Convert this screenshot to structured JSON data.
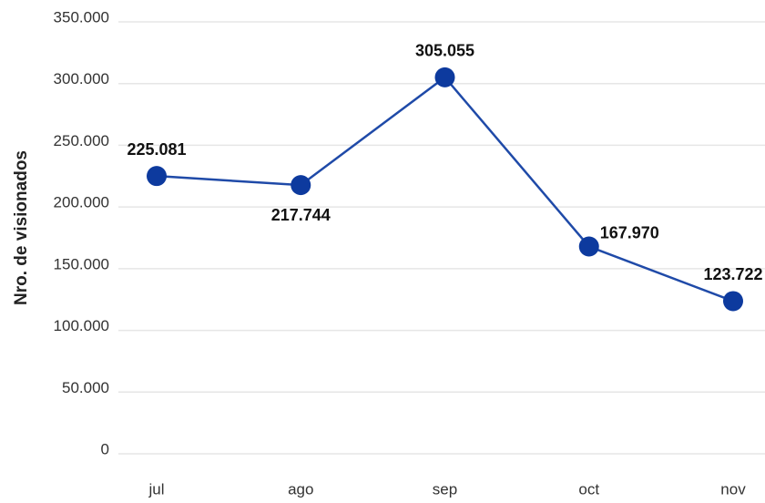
{
  "chart_data": {
    "type": "line",
    "y_label": "Nro. de visionados",
    "categories": [
      "jul",
      "ago",
      "sep",
      "oct",
      "nov"
    ],
    "series": [
      {
        "name": "visionados",
        "color": "#1f4aa8",
        "values": [
          225081,
          217744,
          305055,
          167970,
          123722
        ],
        "value_labels": [
          "225.081",
          "217.744",
          "305.055",
          "167.970",
          "123.722"
        ]
      }
    ],
    "ylim": [
      0,
      350000
    ],
    "yticks": [
      {
        "value": 0,
        "label": "0"
      },
      {
        "value": 50000,
        "label": "50.000"
      },
      {
        "value": 100000,
        "label": "100.000"
      },
      {
        "value": 150000,
        "label": "150.000"
      },
      {
        "value": 200000,
        "label": "200.000"
      },
      {
        "value": 250000,
        "label": "250.000"
      },
      {
        "value": 300000,
        "label": "300.000"
      },
      {
        "value": 350000,
        "label": "350.000"
      }
    ],
    "grid": true
  }
}
